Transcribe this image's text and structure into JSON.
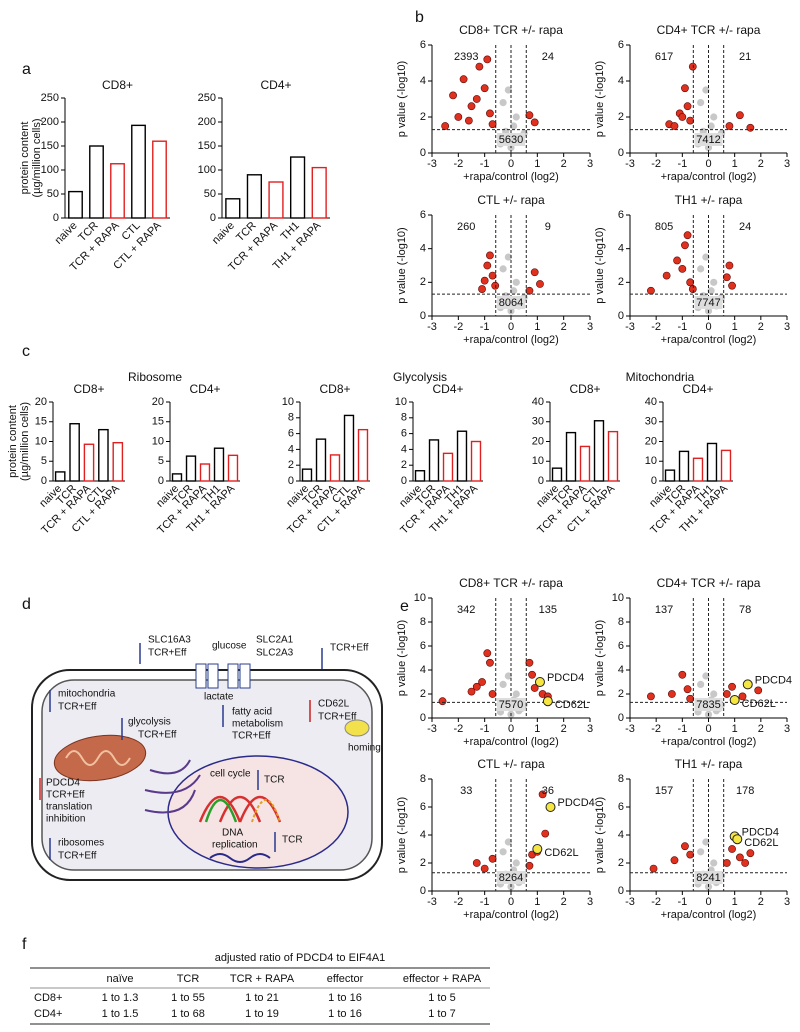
{
  "panel_labels": [
    "a",
    "b",
    "c",
    "d",
    "e",
    "f"
  ],
  "group_titles": [
    "Ribosome",
    "Glycolysis",
    "Mitochondria"
  ],
  "chart_data": [
    {
      "type": "bar",
      "title": "CD8+",
      "ylabel": [
        "protein content",
        "(µg/million cells)"
      ],
      "categories": [
        "naive",
        "TCR",
        "TCR + RAPA",
        "CTL",
        "CTL + RAPA"
      ],
      "values": [
        55,
        150,
        113,
        193,
        160
      ],
      "colors": [
        "#000000",
        "#000000",
        "#e02020",
        "#000000",
        "#e02020"
      ],
      "ylim": [
        0,
        250
      ],
      "yticks": [
        0,
        50,
        100,
        150,
        200,
        250
      ]
    },
    {
      "type": "bar",
      "title": "CD4+",
      "categories": [
        "naive",
        "TCR",
        "TCR + RAPA",
        "TH1",
        "TH1 + RAPA"
      ],
      "values": [
        40,
        90,
        75,
        127,
        105
      ],
      "colors": [
        "#000000",
        "#000000",
        "#e02020",
        "#000000",
        "#e02020"
      ],
      "ylim": [
        0,
        250
      ],
      "yticks": [
        0,
        50,
        100,
        150,
        200,
        250
      ]
    },
    {
      "type": "scatter",
      "title": "CD8+ TCR +/- rapa",
      "xlabel": "+rapa/control (log2)",
      "ylabel": "p value (-log10)",
      "xlim": [
        -3,
        3
      ],
      "xticks": [
        -3,
        -2,
        -1,
        0,
        1,
        2,
        3
      ],
      "ylim": [
        0,
        6
      ],
      "yticks": [
        0,
        2,
        4,
        6
      ],
      "vlines": [
        -0.58,
        0,
        0.58
      ],
      "hline": 1.3,
      "counts": {
        "down": 2393,
        "up": 24,
        "unchanged": 5630
      },
      "series": [
        {
          "color": "#c8c8c8",
          "x": [
            -0.4,
            -0.2,
            0,
            0.2,
            0.4,
            -0.3,
            0.1,
            0.3,
            -0.1,
            0.5
          ],
          "values": [
            0.5,
            1.2,
            0.3,
            2.0,
            0.8,
            2.8,
            1.5,
            0.6,
            3.5,
            1.1
          ]
        },
        {
          "color": "#e0301e",
          "x": [
            -2.2,
            -1.8,
            -1.5,
            -1.2,
            -1.0,
            -0.8,
            -0.7,
            -1.6,
            -2.0,
            -0.9,
            -1.3,
            0.7,
            0.9,
            -2.5
          ],
          "values": [
            3.2,
            4.1,
            2.6,
            4.8,
            3.6,
            2.2,
            1.6,
            1.8,
            2.0,
            5.2,
            3.0,
            2.1,
            1.7,
            1.5
          ]
        }
      ]
    },
    {
      "type": "scatter",
      "title": "CD4+ TCR +/- rapa",
      "xlabel": "+rapa/control (log2)",
      "ylabel": "p value (-log10)",
      "xlim": [
        -3,
        3
      ],
      "xticks": [
        -3,
        -2,
        -1,
        0,
        1,
        2,
        3
      ],
      "ylim": [
        0,
        6
      ],
      "yticks": [
        0,
        2,
        4,
        6
      ],
      "vlines": [
        -0.58,
        0,
        0.58
      ],
      "hline": 1.3,
      "counts": {
        "down": 617,
        "up": 21,
        "unchanged": 7412
      },
      "series": [
        {
          "color": "#c8c8c8",
          "x": [
            -0.4,
            -0.2,
            0,
            0.2,
            0.4,
            -0.3,
            0.1,
            0.3,
            -0.1,
            0.5
          ],
          "values": [
            0.5,
            1.2,
            0.3,
            2.0,
            0.8,
            2.8,
            1.5,
            0.6,
            3.5,
            1.1
          ]
        },
        {
          "color": "#e0301e",
          "x": [
            -1.5,
            -1.1,
            -0.9,
            -0.7,
            -0.8,
            -1.3,
            -0.6,
            -1.0,
            0.8,
            1.2,
            1.6
          ],
          "values": [
            1.6,
            2.2,
            3.6,
            1.8,
            2.6,
            1.5,
            4.8,
            2.0,
            1.5,
            2.1,
            1.4
          ]
        }
      ]
    },
    {
      "type": "scatter",
      "title": "CTL +/- rapa",
      "xlabel": "+rapa/control (log2)",
      "ylabel": "p value (-log10)",
      "xlim": [
        -3,
        3
      ],
      "xticks": [
        -3,
        -2,
        -1,
        0,
        1,
        2,
        3
      ],
      "ylim": [
        0,
        6
      ],
      "yticks": [
        0,
        2,
        4,
        6
      ],
      "vlines": [
        -0.58,
        0,
        0.58
      ],
      "hline": 1.3,
      "counts": {
        "down": 260,
        "up": 9,
        "unchanged": 8064
      },
      "series": [
        {
          "color": "#c8c8c8",
          "x": [
            -0.4,
            -0.2,
            0,
            0.2,
            0.4,
            -0.3,
            0.1,
            0.3,
            -0.1,
            0.5
          ],
          "values": [
            0.5,
            1.2,
            0.3,
            2.0,
            0.8,
            2.8,
            1.5,
            0.6,
            3.5,
            1.1
          ]
        },
        {
          "color": "#e0301e",
          "x": [
            -1.1,
            -0.9,
            -0.7,
            -0.8,
            -0.6,
            -1.0,
            0.7,
            0.9,
            1.1
          ],
          "values": [
            1.6,
            3.0,
            2.4,
            3.6,
            1.8,
            2.1,
            1.5,
            2.6,
            1.9
          ]
        }
      ]
    },
    {
      "type": "scatter",
      "title": "TH1 +/- rapa",
      "xlabel": "+rapa/control (log2)",
      "ylabel": "p value (-log10)",
      "xlim": [
        -3,
        3
      ],
      "xticks": [
        -3,
        -2,
        -1,
        0,
        1,
        2,
        3
      ],
      "ylim": [
        0,
        6
      ],
      "yticks": [
        0,
        2,
        4,
        6
      ],
      "vlines": [
        -0.58,
        0,
        0.58
      ],
      "hline": 1.3,
      "counts": {
        "down": 805,
        "up": 24,
        "unchanged": 7747
      },
      "series": [
        {
          "color": "#c8c8c8",
          "x": [
            -0.4,
            -0.2,
            0,
            0.2,
            0.4,
            -0.3,
            0.1,
            0.3,
            -0.1,
            0.5
          ],
          "values": [
            0.5,
            1.2,
            0.3,
            2.0,
            0.8,
            2.8,
            1.5,
            0.6,
            3.5,
            1.1
          ]
        },
        {
          "color": "#e0301e",
          "x": [
            -2.2,
            -1.6,
            -1.2,
            -0.9,
            -0.7,
            -1.0,
            -0.6,
            -0.8,
            0.7,
            0.9,
            0.8
          ],
          "values": [
            1.5,
            2.4,
            3.3,
            4.2,
            2.0,
            2.8,
            1.6,
            4.8,
            2.3,
            1.8,
            3.0
          ]
        }
      ]
    },
    {
      "type": "bar",
      "title": "CD8+",
      "ylabel": [
        "protein content",
        "(µg/million cells)"
      ],
      "categories": [
        "naive",
        "TCR",
        "TCR + RAPA",
        "CTL",
        "CTL + RAPA"
      ],
      "values": [
        2.3,
        14.5,
        9.3,
        13,
        9.7
      ],
      "colors": [
        "#000000",
        "#000000",
        "#e02020",
        "#000000",
        "#e02020"
      ],
      "ylim": [
        0,
        20
      ],
      "yticks": [
        0,
        5,
        10,
        15,
        20
      ]
    },
    {
      "type": "bar",
      "title": "CD4+",
      "categories": [
        "naive",
        "TCR",
        "TCR + RAPA",
        "TH1",
        "TH1 + RAPA"
      ],
      "values": [
        1.8,
        6.3,
        4.3,
        8.3,
        6.5
      ],
      "colors": [
        "#000000",
        "#000000",
        "#e02020",
        "#000000",
        "#e02020"
      ],
      "ylim": [
        0,
        20
      ],
      "yticks": [
        0,
        5,
        10,
        15,
        20
      ]
    },
    {
      "type": "bar",
      "title": "CD8+",
      "categories": [
        "naive",
        "TCR",
        "TCR + RAPA",
        "CTL",
        "CTL + RAPA"
      ],
      "values": [
        1.5,
        5.3,
        3.3,
        8.3,
        6.5
      ],
      "colors": [
        "#000000",
        "#000000",
        "#e02020",
        "#000000",
        "#e02020"
      ],
      "ylim": [
        0,
        10
      ],
      "yticks": [
        0,
        2,
        4,
        6,
        8,
        10
      ]
    },
    {
      "type": "bar",
      "title": "CD4+",
      "categories": [
        "naive",
        "TCR",
        "TCR + RAPA",
        "TH1",
        "TH1 + RAPA"
      ],
      "values": [
        1.3,
        5.2,
        3.5,
        6.3,
        5.0
      ],
      "colors": [
        "#000000",
        "#000000",
        "#e02020",
        "#000000",
        "#e02020"
      ],
      "ylim": [
        0,
        10
      ],
      "yticks": [
        0,
        2,
        4,
        6,
        8,
        10
      ]
    },
    {
      "type": "bar",
      "title": "CD8+",
      "categories": [
        "naive",
        "TCR",
        "TCR + RAPA",
        "CTL",
        "CTL + RAPA"
      ],
      "values": [
        6.5,
        24.5,
        17.5,
        30.5,
        25
      ],
      "colors": [
        "#000000",
        "#000000",
        "#e02020",
        "#000000",
        "#e02020"
      ],
      "ylim": [
        0,
        40
      ],
      "yticks": [
        0,
        10,
        20,
        30,
        40
      ]
    },
    {
      "type": "bar",
      "title": "CD4+",
      "categories": [
        "naive",
        "TCR",
        "TCR + RAPA",
        "TH1",
        "TH1 + RAPA"
      ],
      "values": [
        5.5,
        15,
        11.5,
        19,
        15.5
      ],
      "colors": [
        "#000000",
        "#000000",
        "#e02020",
        "#000000",
        "#e02020"
      ],
      "ylim": [
        0,
        40
      ],
      "yticks": [
        0,
        10,
        20,
        30,
        40
      ]
    },
    {
      "type": "scatter",
      "title": "CD8+ TCR +/- rapa",
      "xlabel": "+rapa/control (log2)",
      "ylabel": "p value (-log10)",
      "xlim": [
        -3,
        3
      ],
      "xticks": [
        -3,
        -2,
        -1,
        0,
        1,
        2,
        3
      ],
      "ylim": [
        0,
        10
      ],
      "yticks": [
        0,
        2,
        4,
        6,
        8,
        10
      ],
      "vlines": [
        -0.58,
        0,
        0.58
      ],
      "hline": 1.3,
      "counts": {
        "down": 342,
        "up": 135,
        "unchanged": 7570
      },
      "series": [
        {
          "color": "#c8c8c8",
          "x": [
            -0.4,
            -0.2,
            0,
            0.2,
            0.4,
            -0.3,
            0.1,
            0.3,
            -0.1,
            0.5
          ],
          "values": [
            0.5,
            1.2,
            0.3,
            2.0,
            0.8,
            2.8,
            1.5,
            0.6,
            3.5,
            1.1
          ]
        },
        {
          "color": "#e0301e",
          "x": [
            -2.6,
            -1.5,
            -1.1,
            -0.8,
            -0.7,
            -1.3,
            -0.9,
            0.7,
            0.9,
            1.2,
            1.4,
            0.8
          ],
          "values": [
            1.4,
            2.2,
            3.0,
            4.6,
            2.0,
            2.6,
            5.4,
            4.6,
            2.5,
            2.0,
            1.8,
            3.6
          ]
        }
      ],
      "highlights": [
        {
          "label": "PDCD4",
          "x": 1.1,
          "y": 3.0
        },
        {
          "label": "CD62L",
          "x": 1.4,
          "y": 1.4
        }
      ]
    },
    {
      "type": "scatter",
      "title": "CD4+ TCR +/- rapa",
      "xlabel": "+rapa/control (log2)",
      "ylabel": "p value (-log10)",
      "xlim": [
        -3,
        3
      ],
      "xticks": [
        -3,
        -2,
        -1,
        0,
        1,
        2,
        3
      ],
      "ylim": [
        0,
        10
      ],
      "yticks": [
        0,
        2,
        4,
        6,
        8,
        10
      ],
      "vlines": [
        -0.58,
        0,
        0.58
      ],
      "hline": 1.3,
      "counts": {
        "down": 137,
        "up": 78,
        "unchanged": 7835
      },
      "series": [
        {
          "color": "#c8c8c8",
          "x": [
            -0.4,
            -0.2,
            0,
            0.2,
            0.4,
            -0.3,
            0.1,
            0.3,
            -0.1,
            0.5
          ],
          "values": [
            0.5,
            1.2,
            0.3,
            2.0,
            0.8,
            2.8,
            1.5,
            0.6,
            3.5,
            1.1
          ]
        },
        {
          "color": "#e0301e",
          "x": [
            -2.2,
            -1.4,
            -1.0,
            -0.8,
            -0.7,
            0.7,
            0.9,
            1.3,
            1.9
          ],
          "values": [
            1.8,
            2.0,
            3.6,
            2.4,
            1.6,
            2.0,
            2.6,
            1.8,
            2.3
          ]
        }
      ],
      "highlights": [
        {
          "label": "PDCD4",
          "x": 1.5,
          "y": 2.8
        },
        {
          "label": "CD62L",
          "x": 1.0,
          "y": 1.5
        }
      ]
    },
    {
      "type": "scatter",
      "title": "CTL +/- rapa",
      "xlabel": "+rapa/control (log2)",
      "ylabel": "p value (-log10)",
      "xlim": [
        -3,
        3
      ],
      "xticks": [
        -3,
        -2,
        -1,
        0,
        1,
        2,
        3
      ],
      "ylim": [
        0,
        8
      ],
      "yticks": [
        0,
        2,
        4,
        6,
        8
      ],
      "vlines": [
        -0.58,
        0,
        0.58
      ],
      "hline": 1.3,
      "counts": {
        "down": 33,
        "up": 36,
        "unchanged": 8264
      },
      "series": [
        {
          "color": "#c8c8c8",
          "x": [
            -0.4,
            -0.2,
            0,
            0.2,
            0.4,
            -0.3,
            0.1,
            0.3,
            -0.1,
            0.5
          ],
          "values": [
            0.5,
            1.2,
            0.3,
            2.0,
            0.8,
            2.8,
            1.5,
            0.6,
            3.5,
            1.1
          ]
        },
        {
          "color": "#e0301e",
          "x": [
            -1.3,
            -1.0,
            -0.7,
            0.7,
            0.8,
            1.0,
            1.3,
            1.2
          ],
          "values": [
            2.0,
            1.6,
            2.3,
            1.8,
            2.6,
            2.8,
            4.1,
            6.9
          ]
        }
      ],
      "highlights": [
        {
          "label": "PDCD4",
          "x": 1.5,
          "y": 6.0
        },
        {
          "label": "CD62L",
          "x": 1.0,
          "y": 3.0
        }
      ]
    },
    {
      "type": "scatter",
      "title": "TH1 +/- rapa",
      "xlabel": "+rapa/control (log2)",
      "ylabel": "p value (-log10)",
      "xlim": [
        -3,
        3
      ],
      "xticks": [
        -3,
        -2,
        -1,
        0,
        1,
        2,
        3
      ],
      "ylim": [
        0,
        8
      ],
      "yticks": [
        0,
        2,
        4,
        6,
        8
      ],
      "vlines": [
        -0.58,
        0,
        0.58
      ],
      "hline": 1.3,
      "counts": {
        "down": 157,
        "up": 178,
        "unchanged": 8241
      },
      "series": [
        {
          "color": "#c8c8c8",
          "x": [
            -0.4,
            -0.2,
            0,
            0.2,
            0.4,
            -0.3,
            0.1,
            0.3,
            -0.1,
            0.5
          ],
          "values": [
            0.5,
            1.2,
            0.3,
            2.0,
            0.8,
            2.8,
            1.5,
            0.6,
            3.5,
            1.1
          ]
        },
        {
          "color": "#e0301e",
          "x": [
            -2.1,
            -1.3,
            -0.9,
            -0.7,
            0.7,
            0.9,
            1.2,
            1.4,
            1.6
          ],
          "values": [
            1.6,
            2.2,
            3.2,
            2.6,
            2.0,
            3.0,
            2.4,
            2.0,
            2.7
          ]
        }
      ],
      "highlights": [
        {
          "label": "PDCD4",
          "x": 1.0,
          "y": 3.9
        },
        {
          "label": "CD62L",
          "x": 1.1,
          "y": 3.7
        }
      ]
    }
  ],
  "diagram": {
    "labels": [
      "SLC16A3",
      "TCR+Eff",
      "glucose",
      "SLC2A1",
      "SLC2A3",
      "TCR+Eff",
      "lactate",
      "mitochondria",
      "TCR+Eff",
      "glycolysis",
      "TCR+Eff",
      "fatty acid",
      "metabolism",
      "TCR+Eff",
      "CD62L",
      "TCR+Eff",
      "homing",
      "PDCD4",
      "TCR+Eff",
      "translation",
      "inhibition",
      "ribosomes",
      "TCR+Eff",
      "cell cycle",
      "TCR",
      "DNA",
      "replication",
      "TCR"
    ]
  },
  "table": {
    "title": "adjusted ratio of PDCD4 to EIF4A1",
    "header": [
      "naïve",
      "TCR",
      "TCR + RAPA",
      "effector",
      "effector + RAPA"
    ],
    "rows": [
      [
        "CD8+",
        "1 to 1.3",
        "1 to 55",
        "1 to 21",
        "1 to 16",
        "1 to 5"
      ],
      [
        "CD4+",
        "1 to 1.5",
        "1 to 68",
        "1 to 19",
        "1 to 16",
        "1 to 7"
      ]
    ]
  }
}
